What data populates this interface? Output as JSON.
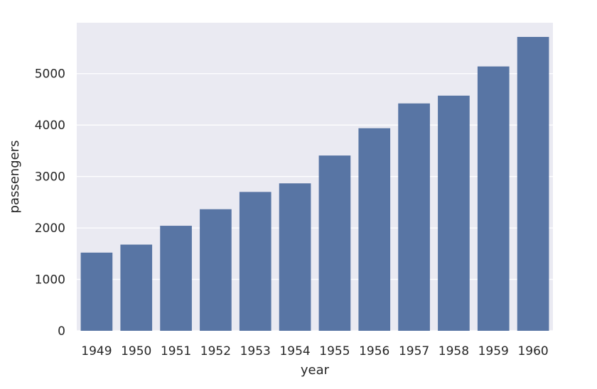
{
  "chart_data": {
    "type": "bar",
    "categories": [
      "1949",
      "1950",
      "1951",
      "1952",
      "1953",
      "1954",
      "1955",
      "1956",
      "1957",
      "1958",
      "1959",
      "1960"
    ],
    "values": [
      1520,
      1676,
      2042,
      2364,
      2700,
      2867,
      3408,
      3939,
      4421,
      4572,
      5140,
      5714
    ],
    "xlabel": "year",
    "ylabel": "passengers",
    "ylim": [
      0,
      5990
    ],
    "yticks": [
      0,
      1000,
      2000,
      3000,
      4000,
      5000
    ],
    "grid": true,
    "colors": {
      "bar": "#5875a4",
      "background": "#eaeaf2",
      "grid": "#ffffff",
      "text": "#262626"
    }
  }
}
